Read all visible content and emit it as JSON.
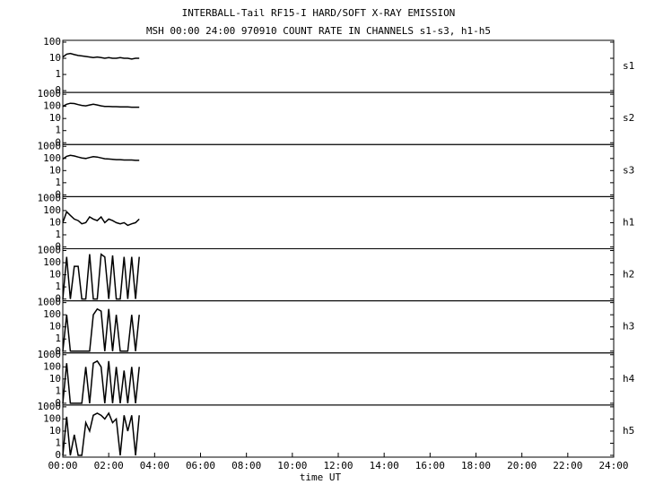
{
  "title": "INTERBALL-Tail RF15-I HARD/SOFT X-RAY EMISSION",
  "subtitle": "MSH 00:00 24:00 970910  COUNT RATE IN CHANNELS s1-s3, h1-h5",
  "chart_data": [
    {
      "type": "line",
      "label": "s1",
      "yscale": "log",
      "color": "#000000",
      "x": [
        0,
        0.17,
        0.33,
        0.5,
        0.67,
        0.83,
        1,
        1.17,
        1.33,
        1.5,
        1.67,
        1.83,
        2,
        2.17,
        2.33,
        2.5,
        2.67,
        2.83,
        3,
        3.17,
        3.33
      ],
      "values": [
        12,
        18,
        20,
        17,
        15,
        14,
        13,
        12,
        11,
        12,
        11,
        10,
        11,
        10,
        10,
        11,
        10,
        10,
        9,
        10,
        10
      ],
      "xlim": [
        0,
        24
      ],
      "ylim": [
        0,
        100
      ],
      "yticks": [
        0,
        1,
        10,
        100
      ]
    },
    {
      "type": "line",
      "label": "s2",
      "yscale": "log",
      "color": "#000000",
      "x": [
        0,
        0.17,
        0.33,
        0.5,
        0.67,
        0.83,
        1,
        1.17,
        1.33,
        1.5,
        1.67,
        1.83,
        2,
        2.17,
        2.33,
        2.5,
        2.67,
        2.83,
        3,
        3.17,
        3.33
      ],
      "values": [
        100,
        150,
        180,
        170,
        140,
        120,
        110,
        130,
        150,
        130,
        110,
        100,
        100,
        95,
        95,
        90,
        90,
        90,
        85,
        85,
        85
      ],
      "xlim": [
        0,
        24
      ],
      "ylim": [
        0,
        1000
      ],
      "yticks": [
        0,
        1,
        10,
        100,
        1000
      ]
    },
    {
      "type": "line",
      "label": "s3",
      "yscale": "log",
      "color": "#000000",
      "x": [
        0,
        0.17,
        0.33,
        0.5,
        0.67,
        0.83,
        1,
        1.17,
        1.33,
        1.5,
        1.67,
        1.83,
        2,
        2.17,
        2.33,
        2.5,
        2.67,
        2.83,
        3,
        3.17,
        3.33
      ],
      "values": [
        90,
        150,
        180,
        160,
        130,
        110,
        100,
        120,
        140,
        130,
        110,
        95,
        90,
        85,
        80,
        80,
        75,
        75,
        75,
        70,
        70
      ],
      "xlim": [
        0,
        24
      ],
      "ylim": [
        0,
        1000
      ],
      "yticks": [
        0,
        1,
        10,
        100,
        1000
      ]
    },
    {
      "type": "line",
      "label": "h1",
      "yscale": "log",
      "color": "#000000",
      "x": [
        0,
        0.17,
        0.33,
        0.5,
        0.67,
        0.83,
        1,
        1.17,
        1.33,
        1.5,
        1.67,
        1.83,
        2,
        2.17,
        2.33,
        2.5,
        2.67,
        2.83,
        3,
        3.17,
        3.33
      ],
      "values": [
        10,
        80,
        40,
        20,
        15,
        8,
        10,
        30,
        20,
        15,
        30,
        10,
        20,
        15,
        10,
        8,
        10,
        6,
        8,
        10,
        20
      ],
      "xlim": [
        0,
        24
      ],
      "ylim": [
        0,
        1000
      ],
      "yticks": [
        0,
        1,
        10,
        100,
        1000
      ]
    },
    {
      "type": "line",
      "label": "h2",
      "yscale": "log",
      "color": "#000000",
      "x": [
        0,
        0.17,
        0.33,
        0.5,
        0.67,
        0.83,
        1,
        1.17,
        1.33,
        1.5,
        1.67,
        1.83,
        2,
        2.17,
        2.33,
        2.5,
        2.67,
        2.83,
        3,
        3.17,
        3.33
      ],
      "values": [
        0,
        300,
        0,
        50,
        50,
        0,
        0,
        500,
        0,
        0,
        500,
        300,
        0,
        400,
        0,
        0,
        300,
        0,
        300,
        0,
        300
      ],
      "xlim": [
        0,
        24
      ],
      "ylim": [
        0,
        1000
      ],
      "yticks": [
        0,
        1,
        10,
        100,
        1000
      ]
    },
    {
      "type": "line",
      "label": "h3",
      "yscale": "log",
      "color": "#000000",
      "x": [
        0,
        0.17,
        0.33,
        0.5,
        0.67,
        0.83,
        1,
        1.17,
        1.33,
        1.5,
        1.67,
        1.83,
        2,
        2.17,
        2.33,
        2.5,
        2.67,
        2.83,
        3,
        3.17,
        3.33
      ],
      "values": [
        0,
        100,
        0,
        0,
        0,
        0,
        0,
        0,
        100,
        300,
        200,
        0,
        300,
        0,
        100,
        0,
        0,
        0,
        100,
        0,
        100
      ],
      "xlim": [
        0,
        24
      ],
      "ylim": [
        0,
        1000
      ],
      "yticks": [
        0,
        1,
        10,
        100,
        1000
      ]
    },
    {
      "type": "line",
      "label": "h4",
      "yscale": "log",
      "color": "#000000",
      "x": [
        0,
        0.17,
        0.33,
        0.5,
        0.67,
        0.83,
        1,
        1.17,
        1.33,
        1.5,
        1.67,
        1.83,
        2,
        2.17,
        2.33,
        2.5,
        2.67,
        2.83,
        3,
        3.17,
        3.33
      ],
      "values": [
        0,
        200,
        0,
        0,
        0,
        0,
        100,
        0,
        200,
        300,
        100,
        0,
        300,
        0,
        100,
        0,
        50,
        0,
        100,
        0,
        100
      ],
      "xlim": [
        0,
        24
      ],
      "ylim": [
        0,
        1000
      ],
      "yticks": [
        0,
        1,
        10,
        100,
        1000
      ]
    },
    {
      "type": "line",
      "label": "h5",
      "yscale": "log",
      "color": "#000000",
      "x": [
        0,
        0.17,
        0.33,
        0.5,
        0.67,
        0.83,
        1,
        1.17,
        1.33,
        1.5,
        1.67,
        1.83,
        2,
        2.17,
        2.33,
        2.5,
        2.67,
        2.83,
        3,
        3.17,
        3.33
      ],
      "values": [
        0,
        150,
        0,
        5,
        0,
        0,
        50,
        10,
        200,
        300,
        200,
        100,
        300,
        50,
        100,
        0,
        200,
        10,
        200,
        0,
        200
      ],
      "xlim": [
        0,
        24
      ],
      "ylim": [
        0,
        1000
      ],
      "yticks": [
        0,
        1,
        10,
        100,
        1000
      ],
      "x_label": "time UT",
      "xticks": [
        {
          "value": 0,
          "label": "00:00"
        },
        {
          "value": 2,
          "label": "02:00"
        },
        {
          "value": 4,
          "label": "04:00"
        },
        {
          "value": 6,
          "label": "06:00"
        },
        {
          "value": 8,
          "label": "08:00"
        },
        {
          "value": 10,
          "label": "10:00"
        },
        {
          "value": 12,
          "label": "12:00"
        },
        {
          "value": 14,
          "label": "14:00"
        },
        {
          "value": 16,
          "label": "16:00"
        },
        {
          "value": 18,
          "label": "18:00"
        },
        {
          "value": 20,
          "label": "20:00"
        },
        {
          "value": 22,
          "label": "22:00"
        },
        {
          "value": 24,
          "label": "24:00"
        }
      ]
    }
  ]
}
